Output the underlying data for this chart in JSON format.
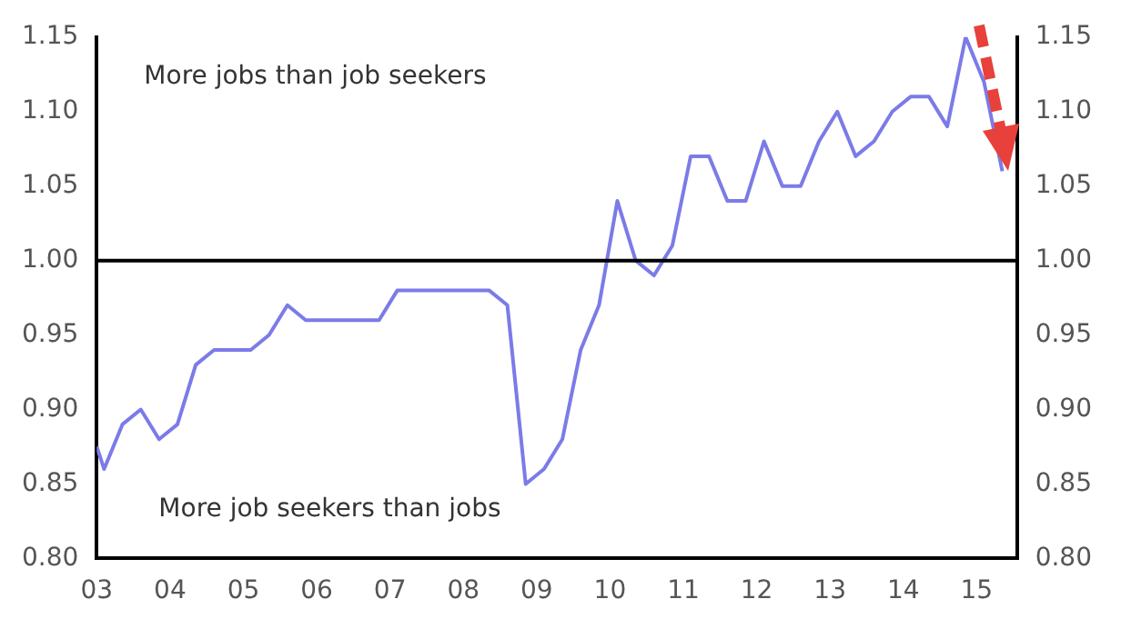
{
  "chart_data": {
    "type": "line",
    "x": [
      2003.0,
      2003.1,
      2003.35,
      2003.6,
      2003.85,
      2004.1,
      2004.35,
      2004.6,
      2004.85,
      2005.1,
      2005.35,
      2005.6,
      2005.85,
      2006.1,
      2006.35,
      2006.6,
      2006.85,
      2007.1,
      2007.35,
      2007.6,
      2007.85,
      2008.1,
      2008.35,
      2008.6,
      2008.85,
      2009.1,
      2009.35,
      2009.6,
      2009.85,
      2010.1,
      2010.35,
      2010.6,
      2010.85,
      2011.1,
      2011.35,
      2011.6,
      2011.85,
      2012.1,
      2012.35,
      2012.6,
      2012.85,
      2013.1,
      2013.35,
      2013.6,
      2013.85,
      2014.1,
      2014.35,
      2014.6,
      2014.85,
      2015.1,
      2015.35
    ],
    "series": [
      {
        "color": "#7b7be8",
        "values": [
          0.875,
          0.86,
          0.89,
          0.9,
          0.88,
          0.89,
          0.93,
          0.94,
          0.94,
          0.94,
          0.95,
          0.97,
          0.96,
          0.96,
          0.96,
          0.96,
          0.96,
          0.98,
          0.98,
          0.98,
          0.98,
          0.98,
          0.98,
          0.97,
          0.85,
          0.86,
          0.88,
          0.94,
          0.97,
          1.04,
          1.0,
          0.99,
          1.01,
          1.07,
          1.07,
          1.04,
          1.04,
          1.08,
          1.05,
          1.05,
          1.08,
          1.1,
          1.07,
          1.08,
          1.1,
          1.11,
          1.11,
          1.09,
          1.15,
          1.12,
          1.06
        ]
      }
    ],
    "xlim": [
      2003,
      2015.55
    ],
    "xticks": [
      {
        "value": 2003,
        "label": "03"
      },
      {
        "value": 2004,
        "label": "04"
      },
      {
        "value": 2005,
        "label": "05"
      },
      {
        "value": 2006,
        "label": "06"
      },
      {
        "value": 2007,
        "label": "07"
      },
      {
        "value": 2008,
        "label": "08"
      },
      {
        "value": 2009,
        "label": "09"
      },
      {
        "value": 2010,
        "label": "10"
      },
      {
        "value": 2011,
        "label": "11"
      },
      {
        "value": 2012,
        "label": "12"
      },
      {
        "value": 2013,
        "label": "13"
      },
      {
        "value": 2014,
        "label": "14"
      },
      {
        "value": 2015,
        "label": "15"
      }
    ],
    "ylim": [
      0.8,
      1.15
    ],
    "yticks": [
      {
        "value": 0.8,
        "label": "0.80"
      },
      {
        "value": 0.85,
        "label": "0.85"
      },
      {
        "value": 0.9,
        "label": "0.90"
      },
      {
        "value": 0.95,
        "label": "0.95"
      },
      {
        "value": 1.0,
        "label": "1.00"
      },
      {
        "value": 1.05,
        "label": "1.05"
      },
      {
        "value": 1.1,
        "label": "1.10"
      },
      {
        "value": 1.15,
        "label": "1.15"
      }
    ],
    "y2lim": [
      0.8,
      1.15
    ],
    "y2ticks": [
      {
        "value": 0.8,
        "label": "0.80"
      },
      {
        "value": 0.85,
        "label": "0.85"
      },
      {
        "value": 0.9,
        "label": "0.90"
      },
      {
        "value": 0.95,
        "label": "0.95"
      },
      {
        "value": 1.0,
        "label": "1.00"
      },
      {
        "value": 1.05,
        "label": "1.05"
      },
      {
        "value": 1.1,
        "label": "1.10"
      },
      {
        "value": 1.15,
        "label": "1.15"
      }
    ],
    "ref_lines": [
      {
        "axis": "y",
        "value": 1.0,
        "color": "#000000"
      }
    ],
    "annotations": [
      "More jobs than job seekers",
      "More job seekers than jobs"
    ],
    "grid": false,
    "legend": false,
    "marker": "none",
    "line_style": "solid"
  }
}
